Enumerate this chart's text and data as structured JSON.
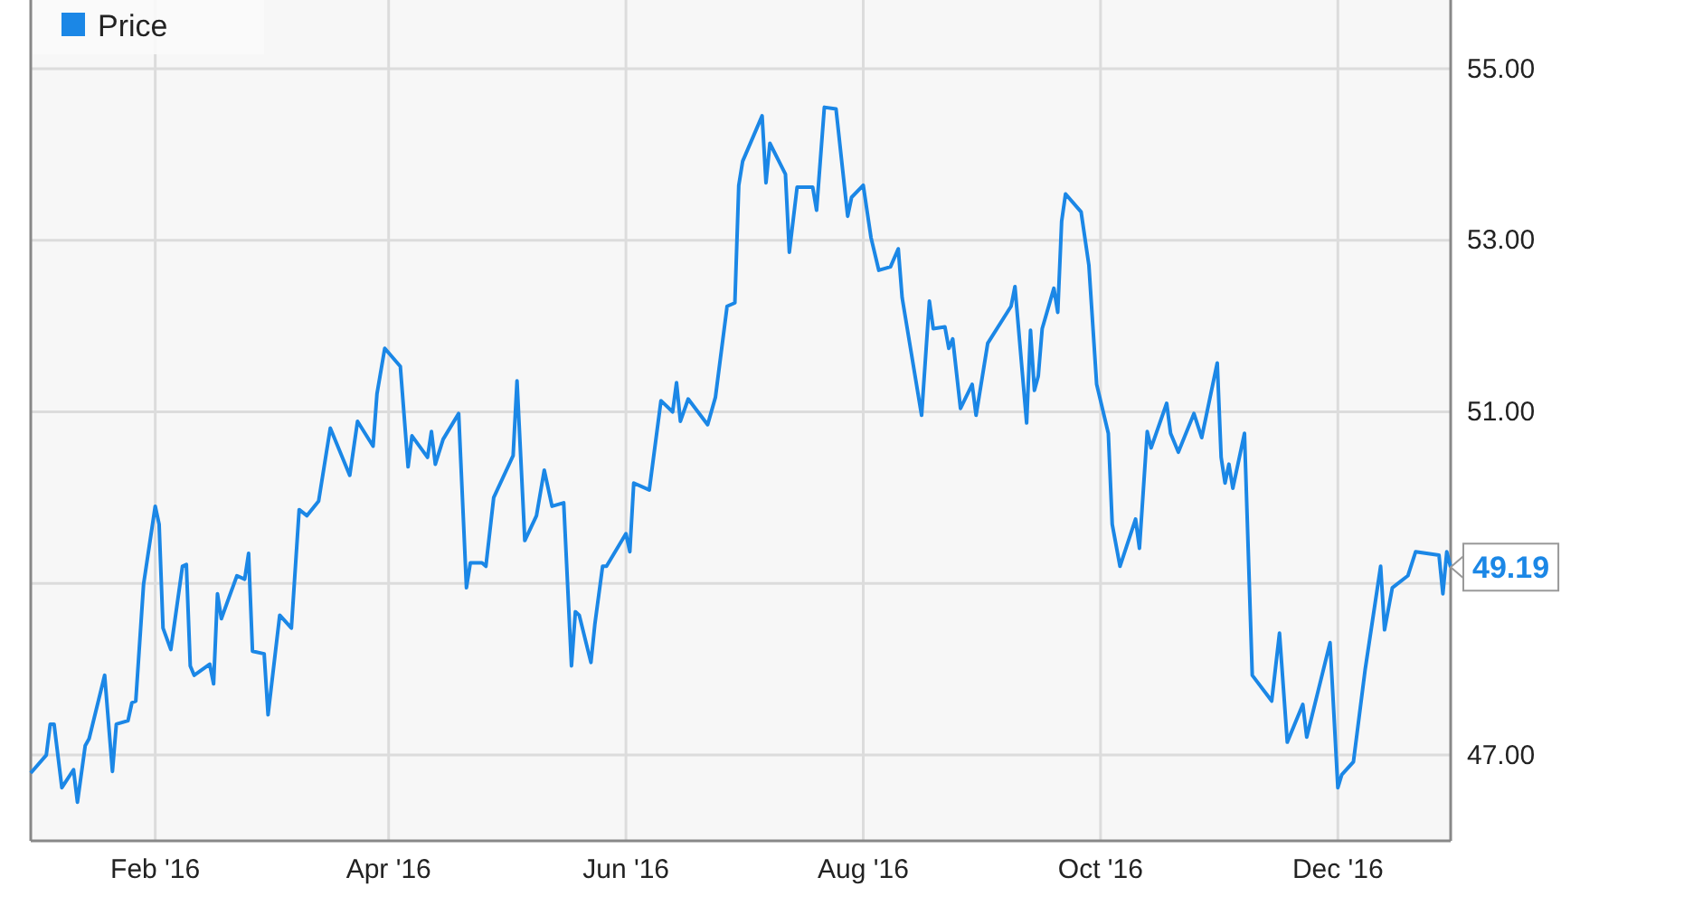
{
  "chart_data": {
    "type": "line",
    "xlim": [
      "2015-12-31",
      "2016-12-30"
    ],
    "ylim": [
      46,
      55.8
    ],
    "xticks": [
      {
        "value": "2016-02-01",
        "label": "Feb '16"
      },
      {
        "value": "2016-04-01",
        "label": "Apr '16"
      },
      {
        "value": "2016-06-01",
        "label": "Jun '16"
      },
      {
        "value": "2016-08-01",
        "label": "Aug '16"
      },
      {
        "value": "2016-10-01",
        "label": "Oct '16"
      },
      {
        "value": "2016-12-01",
        "label": "Dec '16"
      }
    ],
    "yticks": [
      {
        "value": 47,
        "label": "47.00"
      },
      {
        "value": 49,
        "label": null
      },
      {
        "value": 51,
        "label": "51.00"
      },
      {
        "value": 53,
        "label": "53.00"
      },
      {
        "value": 55,
        "label": "55.00"
      }
    ],
    "grid": true,
    "legend": "top left",
    "marker": "none",
    "line_style": "solid",
    "annotations": [
      {
        "text": "49.19",
        "x": "2016-12-30",
        "y": 49.19
      }
    ],
    "series": [
      {
        "name": "Price",
        "color": "#1b87e6",
        "x": [
          "2015-12-31",
          "2016-01-04",
          "2016-01-05",
          "2016-01-06",
          "2016-01-08",
          "2016-01-11",
          "2016-01-12",
          "2016-01-14",
          "2016-01-15",
          "2016-01-19",
          "2016-01-21",
          "2016-01-22",
          "2016-01-25",
          "2016-01-26",
          "2016-01-27",
          "2016-01-29",
          "2016-02-01",
          "2016-02-02",
          "2016-02-03",
          "2016-02-05",
          "2016-02-08",
          "2016-02-09",
          "2016-02-10",
          "2016-02-11",
          "2016-02-15",
          "2016-02-16",
          "2016-02-17",
          "2016-02-18",
          "2016-02-22",
          "2016-02-24",
          "2016-02-25",
          "2016-02-26",
          "2016-02-29",
          "2016-03-01",
          "2016-03-04",
          "2016-03-07",
          "2016-03-09",
          "2016-03-11",
          "2016-03-14",
          "2016-03-17",
          "2016-03-22",
          "2016-03-24",
          "2016-03-28",
          "2016-03-29",
          "2016-03-31",
          "2016-04-04",
          "2016-04-06",
          "2016-04-07",
          "2016-04-11",
          "2016-04-12",
          "2016-04-13",
          "2016-04-15",
          "2016-04-19",
          "2016-04-21",
          "2016-04-22",
          "2016-04-25",
          "2016-04-26",
          "2016-04-28",
          "2016-05-03",
          "2016-05-04",
          "2016-05-06",
          "2016-05-09",
          "2016-05-11",
          "2016-05-13",
          "2016-05-16",
          "2016-05-18",
          "2016-05-19",
          "2016-05-20",
          "2016-05-23",
          "2016-05-24",
          "2016-05-26",
          "2016-05-27",
          "2016-06-01",
          "2016-06-02",
          "2016-06-03",
          "2016-06-07",
          "2016-06-10",
          "2016-06-13",
          "2016-06-14",
          "2016-06-15",
          "2016-06-17",
          "2016-06-22",
          "2016-06-24",
          "2016-06-27",
          "2016-06-29",
          "2016-06-30",
          "2016-07-01",
          "2016-07-06",
          "2016-07-07",
          "2016-07-08",
          "2016-07-12",
          "2016-07-13",
          "2016-07-15",
          "2016-07-19",
          "2016-07-20",
          "2016-07-22",
          "2016-07-25",
          "2016-07-28",
          "2016-07-29",
          "2016-08-01",
          "2016-08-03",
          "2016-08-05",
          "2016-08-08",
          "2016-08-10",
          "2016-08-11",
          "2016-08-16",
          "2016-08-18",
          "2016-08-19",
          "2016-08-22",
          "2016-08-23",
          "2016-08-24",
          "2016-08-26",
          "2016-08-29",
          "2016-08-30",
          "2016-09-02",
          "2016-09-08",
          "2016-09-09",
          "2016-09-12",
          "2016-09-13",
          "2016-09-14",
          "2016-09-15",
          "2016-09-16",
          "2016-09-19",
          "2016-09-20",
          "2016-09-21",
          "2016-09-22",
          "2016-09-26",
          "2016-09-28",
          "2016-09-30",
          "2016-10-03",
          "2016-10-04",
          "2016-10-06",
          "2016-10-10",
          "2016-10-11",
          "2016-10-13",
          "2016-10-14",
          "2016-10-18",
          "2016-10-19",
          "2016-10-21",
          "2016-10-25",
          "2016-10-27",
          "2016-10-31",
          "2016-11-01",
          "2016-11-02",
          "2016-11-03",
          "2016-11-04",
          "2016-11-07",
          "2016-11-09",
          "2016-11-14",
          "2016-11-16",
          "2016-11-18",
          "2016-11-22",
          "2016-11-23",
          "2016-11-29",
          "2016-12-01",
          "2016-12-02",
          "2016-12-05",
          "2016-12-08",
          "2016-12-12",
          "2016-12-13",
          "2016-12-15",
          "2016-12-19",
          "2016-12-21",
          "2016-12-27",
          "2016-12-28",
          "2016-12-29",
          "2016-12-30"
        ],
        "values": [
          46.79,
          47.0,
          47.36,
          47.36,
          46.62,
          46.83,
          46.45,
          47.11,
          47.19,
          47.93,
          46.81,
          47.36,
          47.4,
          47.61,
          47.63,
          48.99,
          49.9,
          49.69,
          48.48,
          48.23,
          49.2,
          49.22,
          48.04,
          47.93,
          48.06,
          47.83,
          48.88,
          48.59,
          49.09,
          49.05,
          49.35,
          48.21,
          48.18,
          47.47,
          48.63,
          48.48,
          49.86,
          49.79,
          49.96,
          50.81,
          50.26,
          50.89,
          50.6,
          51.21,
          51.74,
          51.53,
          50.36,
          50.72,
          50.47,
          50.77,
          50.39,
          50.68,
          50.98,
          48.95,
          49.24,
          49.24,
          49.2,
          50.0,
          50.49,
          51.36,
          49.5,
          49.79,
          50.32,
          49.9,
          49.94,
          48.04,
          48.67,
          48.63,
          48.08,
          48.52,
          49.2,
          49.2,
          49.58,
          49.37,
          50.17,
          50.09,
          51.13,
          51.0,
          51.34,
          50.89,
          51.15,
          50.85,
          51.17,
          52.23,
          52.27,
          53.64,
          53.92,
          54.45,
          53.67,
          54.13,
          53.77,
          52.86,
          53.62,
          53.62,
          53.35,
          54.55,
          54.53,
          53.28,
          53.5,
          53.64,
          53.03,
          52.65,
          52.69,
          52.9,
          52.33,
          50.96,
          52.29,
          51.97,
          51.99,
          51.74,
          51.85,
          51.04,
          51.32,
          50.96,
          51.8,
          52.23,
          52.46,
          50.87,
          51.95,
          51.25,
          51.42,
          51.97,
          52.44,
          52.16,
          53.22,
          53.54,
          53.33,
          52.71,
          51.32,
          50.75,
          49.69,
          49.2,
          49.75,
          49.41,
          50.77,
          50.58,
          51.1,
          50.75,
          50.53,
          50.98,
          50.7,
          51.57,
          50.47,
          50.17,
          50.39,
          50.11,
          50.75,
          47.93,
          47.63,
          48.42,
          47.15,
          47.59,
          47.21,
          48.31,
          46.62,
          46.77,
          46.92,
          47.99,
          49.2,
          48.46,
          48.95,
          49.09,
          49.37,
          49.33,
          48.88,
          49.37,
          49.19
        ]
      }
    ]
  }
}
